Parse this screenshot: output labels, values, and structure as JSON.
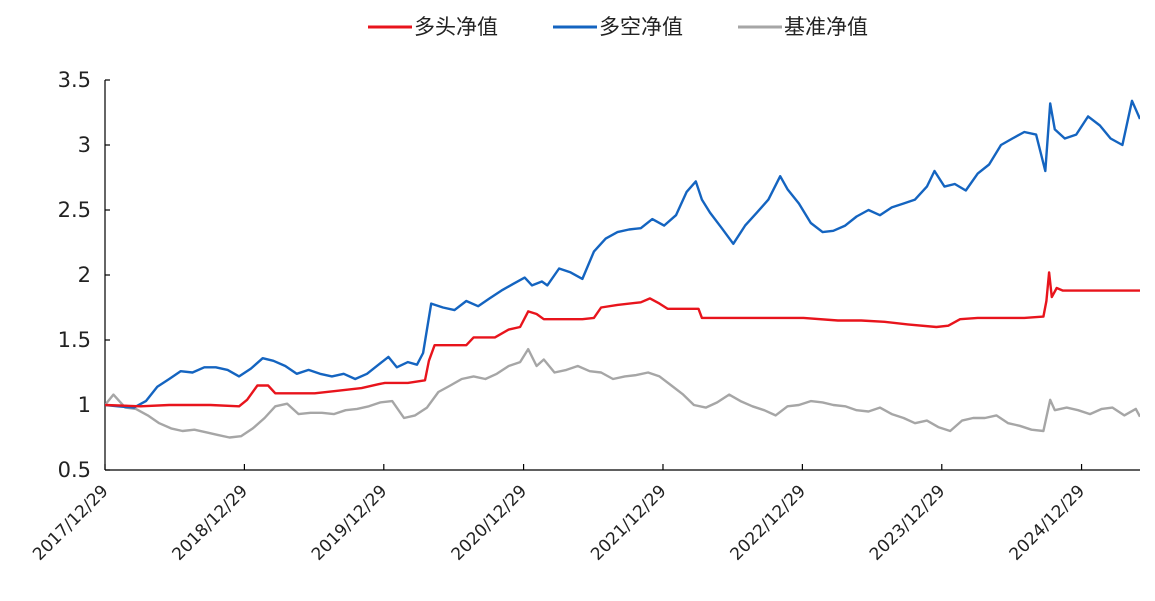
{
  "chart_data": {
    "type": "line",
    "title": "",
    "xlabel": "",
    "ylabel": "",
    "ylim": [
      0.5,
      3.5
    ],
    "yticks": [
      "0.5",
      "1",
      "1.5",
      "2",
      "2.5",
      "3",
      "3.5"
    ],
    "xlim": [
      "2017-12-29",
      "2025-05-31"
    ],
    "xticks": [
      "2017/12/29",
      "2018/12/29",
      "2019/12/29",
      "2020/12/29",
      "2021/12/29",
      "2022/12/29",
      "2023/12/29",
      "2024/12/29"
    ],
    "grid": false,
    "legend_position": "top-center",
    "series": [
      {
        "name": "多头净值",
        "color": "#e8141c",
        "points": [
          [
            "2017-12-29",
            1.0
          ],
          [
            "2018-04-01",
            0.99
          ],
          [
            "2018-06-15",
            1.0
          ],
          [
            "2018-10-01",
            1.0
          ],
          [
            "2018-12-15",
            0.99
          ],
          [
            "2019-01-05",
            1.04
          ],
          [
            "2019-02-01",
            1.15
          ],
          [
            "2019-03-01",
            1.15
          ],
          [
            "2019-03-20",
            1.09
          ],
          [
            "2019-07-01",
            1.09
          ],
          [
            "2019-09-01",
            1.11
          ],
          [
            "2019-11-01",
            1.13
          ],
          [
            "2019-12-15",
            1.16
          ],
          [
            "2020-01-01",
            1.17
          ],
          [
            "2020-03-01",
            1.17
          ],
          [
            "2020-04-15",
            1.19
          ],
          [
            "2020-04-25",
            1.34
          ],
          [
            "2020-05-10",
            1.46
          ],
          [
            "2020-08-01",
            1.46
          ],
          [
            "2020-08-20",
            1.52
          ],
          [
            "2020-10-15",
            1.52
          ],
          [
            "2020-11-20",
            1.58
          ],
          [
            "2020-12-20",
            1.6
          ],
          [
            "2021-01-10",
            1.72
          ],
          [
            "2021-02-01",
            1.7
          ],
          [
            "2021-02-20",
            1.66
          ],
          [
            "2021-06-01",
            1.66
          ],
          [
            "2021-07-01",
            1.67
          ],
          [
            "2021-07-20",
            1.75
          ],
          [
            "2021-09-01",
            1.77
          ],
          [
            "2021-11-01",
            1.79
          ],
          [
            "2021-11-25",
            1.82
          ],
          [
            "2021-12-20",
            1.78
          ],
          [
            "2022-01-10",
            1.74
          ],
          [
            "2022-04-01",
            1.74
          ],
          [
            "2022-04-10",
            1.67
          ],
          [
            "2023-01-01",
            1.67
          ],
          [
            "2023-04-01",
            1.65
          ],
          [
            "2023-06-01",
            1.65
          ],
          [
            "2023-08-01",
            1.64
          ],
          [
            "2023-10-01",
            1.62
          ],
          [
            "2023-12-15",
            1.6
          ],
          [
            "2024-01-15",
            1.61
          ],
          [
            "2024-02-15",
            1.66
          ],
          [
            "2024-04-01",
            1.67
          ],
          [
            "2024-08-01",
            1.67
          ],
          [
            "2024-09-20",
            1.68
          ],
          [
            "2024-09-28",
            1.8
          ],
          [
            "2024-10-05",
            2.02
          ],
          [
            "2024-10-12",
            1.83
          ],
          [
            "2024-10-25",
            1.9
          ],
          [
            "2024-11-10",
            1.88
          ],
          [
            "2025-05-31",
            1.88
          ]
        ]
      },
      {
        "name": "多空净值",
        "color": "#1464c0",
        "points": [
          [
            "2017-12-29",
            1.0
          ],
          [
            "2018-02-01",
            0.99
          ],
          [
            "2018-03-15",
            0.98
          ],
          [
            "2018-04-15",
            1.03
          ],
          [
            "2018-05-15",
            1.14
          ],
          [
            "2018-06-15",
            1.2
          ],
          [
            "2018-07-15",
            1.26
          ],
          [
            "2018-08-15",
            1.25
          ],
          [
            "2018-09-15",
            1.29
          ],
          [
            "2018-10-15",
            1.29
          ],
          [
            "2018-11-15",
            1.27
          ],
          [
            "2018-12-15",
            1.22
          ],
          [
            "2019-01-15",
            1.28
          ],
          [
            "2019-02-15",
            1.36
          ],
          [
            "2019-03-15",
            1.34
          ],
          [
            "2019-04-15",
            1.3
          ],
          [
            "2019-05-15",
            1.24
          ],
          [
            "2019-06-15",
            1.27
          ],
          [
            "2019-07-15",
            1.24
          ],
          [
            "2019-08-15",
            1.22
          ],
          [
            "2019-09-15",
            1.24
          ],
          [
            "2019-10-15",
            1.2
          ],
          [
            "2019-11-15",
            1.24
          ],
          [
            "2019-12-15",
            1.31
          ],
          [
            "2020-01-10",
            1.37
          ],
          [
            "2020-02-01",
            1.29
          ],
          [
            "2020-03-01",
            1.33
          ],
          [
            "2020-03-25",
            1.31
          ],
          [
            "2020-04-10",
            1.4
          ],
          [
            "2020-05-01",
            1.78
          ],
          [
            "2020-06-01",
            1.75
          ],
          [
            "2020-07-01",
            1.73
          ],
          [
            "2020-08-01",
            1.8
          ],
          [
            "2020-09-01",
            1.76
          ],
          [
            "2020-10-01",
            1.82
          ],
          [
            "2020-11-01",
            1.88
          ],
          [
            "2020-12-01",
            1.93
          ],
          [
            "2021-01-01",
            1.98
          ],
          [
            "2021-01-20",
            1.92
          ],
          [
            "2021-02-15",
            1.95
          ],
          [
            "2021-03-01",
            1.92
          ],
          [
            "2021-04-01",
            2.05
          ],
          [
            "2021-05-01",
            2.02
          ],
          [
            "2021-06-01",
            1.97
          ],
          [
            "2021-07-01",
            2.18
          ],
          [
            "2021-08-01",
            2.28
          ],
          [
            "2021-09-01",
            2.33
          ],
          [
            "2021-10-01",
            2.35
          ],
          [
            "2021-11-01",
            2.36
          ],
          [
            "2021-12-01",
            2.43
          ],
          [
            "2022-01-01",
            2.38
          ],
          [
            "2022-02-01",
            2.46
          ],
          [
            "2022-03-01",
            2.64
          ],
          [
            "2022-03-25",
            2.72
          ],
          [
            "2022-04-10",
            2.58
          ],
          [
            "2022-05-01",
            2.48
          ],
          [
            "2022-06-01",
            2.36
          ],
          [
            "2022-07-01",
            2.24
          ],
          [
            "2022-08-01",
            2.38
          ],
          [
            "2022-09-01",
            2.48
          ],
          [
            "2022-10-01",
            2.58
          ],
          [
            "2022-11-01",
            2.76
          ],
          [
            "2022-11-20",
            2.66
          ],
          [
            "2022-12-20",
            2.55
          ],
          [
            "2023-01-20",
            2.4
          ],
          [
            "2023-02-20",
            2.33
          ],
          [
            "2023-03-20",
            2.34
          ],
          [
            "2023-04-20",
            2.38
          ],
          [
            "2023-05-20",
            2.45
          ],
          [
            "2023-06-20",
            2.5
          ],
          [
            "2023-07-20",
            2.46
          ],
          [
            "2023-08-20",
            2.52
          ],
          [
            "2023-09-20",
            2.55
          ],
          [
            "2023-10-20",
            2.58
          ],
          [
            "2023-11-20",
            2.68
          ],
          [
            "2023-12-10",
            2.8
          ],
          [
            "2024-01-05",
            2.68
          ],
          [
            "2024-02-01",
            2.7
          ],
          [
            "2024-03-01",
            2.65
          ],
          [
            "2024-04-01",
            2.78
          ],
          [
            "2024-05-01",
            2.85
          ],
          [
            "2024-06-01",
            3.0
          ],
          [
            "2024-07-01",
            3.05
          ],
          [
            "2024-08-01",
            3.1
          ],
          [
            "2024-09-01",
            3.08
          ],
          [
            "2024-09-25",
            2.8
          ],
          [
            "2024-10-08",
            3.32
          ],
          [
            "2024-10-20",
            3.12
          ],
          [
            "2024-11-15",
            3.05
          ],
          [
            "2024-12-15",
            3.08
          ],
          [
            "2025-01-15",
            3.22
          ],
          [
            "2025-02-15",
            3.15
          ],
          [
            "2025-03-15",
            3.05
          ],
          [
            "2025-04-15",
            3.0
          ],
          [
            "2025-05-10",
            3.34
          ],
          [
            "2025-05-31",
            3.2
          ]
        ]
      },
      {
        "name": "基准净值",
        "color": "#a6a6a6",
        "points": [
          [
            "2017-12-29",
            1.0
          ],
          [
            "2018-01-20",
            1.08
          ],
          [
            "2018-02-20",
            0.98
          ],
          [
            "2018-03-20",
            0.97
          ],
          [
            "2018-04-20",
            0.92
          ],
          [
            "2018-05-20",
            0.86
          ],
          [
            "2018-06-20",
            0.82
          ],
          [
            "2018-07-20",
            0.8
          ],
          [
            "2018-08-20",
            0.81
          ],
          [
            "2018-09-20",
            0.79
          ],
          [
            "2018-10-20",
            0.77
          ],
          [
            "2018-11-20",
            0.75
          ],
          [
            "2018-12-20",
            0.76
          ],
          [
            "2019-01-20",
            0.82
          ],
          [
            "2019-02-20",
            0.9
          ],
          [
            "2019-03-20",
            0.99
          ],
          [
            "2019-04-20",
            1.01
          ],
          [
            "2019-05-20",
            0.93
          ],
          [
            "2019-06-20",
            0.94
          ],
          [
            "2019-07-20",
            0.94
          ],
          [
            "2019-08-20",
            0.93
          ],
          [
            "2019-09-20",
            0.96
          ],
          [
            "2019-10-20",
            0.97
          ],
          [
            "2019-11-20",
            0.99
          ],
          [
            "2019-12-20",
            1.02
          ],
          [
            "2020-01-20",
            1.03
          ],
          [
            "2020-02-20",
            0.9
          ],
          [
            "2020-03-20",
            0.92
          ],
          [
            "2020-04-20",
            0.98
          ],
          [
            "2020-05-20",
            1.1
          ],
          [
            "2020-06-20",
            1.15
          ],
          [
            "2020-07-20",
            1.2
          ],
          [
            "2020-08-20",
            1.22
          ],
          [
            "2020-09-20",
            1.2
          ],
          [
            "2020-10-20",
            1.24
          ],
          [
            "2020-11-20",
            1.3
          ],
          [
            "2020-12-20",
            1.33
          ],
          [
            "2021-01-10",
            1.43
          ],
          [
            "2021-02-01",
            1.3
          ],
          [
            "2021-02-20",
            1.35
          ],
          [
            "2021-03-20",
            1.25
          ],
          [
            "2021-04-20",
            1.27
          ],
          [
            "2021-05-20",
            1.3
          ],
          [
            "2021-06-20",
            1.26
          ],
          [
            "2021-07-20",
            1.25
          ],
          [
            "2021-08-20",
            1.2
          ],
          [
            "2021-09-20",
            1.22
          ],
          [
            "2021-10-20",
            1.23
          ],
          [
            "2021-11-20",
            1.25
          ],
          [
            "2021-12-20",
            1.22
          ],
          [
            "2022-01-20",
            1.15
          ],
          [
            "2022-02-20",
            1.08
          ],
          [
            "2022-03-20",
            1.0
          ],
          [
            "2022-04-20",
            0.98
          ],
          [
            "2022-05-20",
            1.02
          ],
          [
            "2022-06-20",
            1.08
          ],
          [
            "2022-07-20",
            1.03
          ],
          [
            "2022-08-20",
            0.99
          ],
          [
            "2022-09-20",
            0.96
          ],
          [
            "2022-10-20",
            0.92
          ],
          [
            "2022-11-20",
            0.99
          ],
          [
            "2022-12-20",
            1.0
          ],
          [
            "2023-01-20",
            1.03
          ],
          [
            "2023-02-20",
            1.02
          ],
          [
            "2023-03-20",
            1.0
          ],
          [
            "2023-04-20",
            0.99
          ],
          [
            "2023-05-20",
            0.96
          ],
          [
            "2023-06-20",
            0.95
          ],
          [
            "2023-07-20",
            0.98
          ],
          [
            "2023-08-20",
            0.93
          ],
          [
            "2023-09-20",
            0.9
          ],
          [
            "2023-10-20",
            0.86
          ],
          [
            "2023-11-20",
            0.88
          ],
          [
            "2023-12-20",
            0.83
          ],
          [
            "2024-01-20",
            0.8
          ],
          [
            "2024-02-20",
            0.88
          ],
          [
            "2024-03-20",
            0.9
          ],
          [
            "2024-04-20",
            0.9
          ],
          [
            "2024-05-20",
            0.92
          ],
          [
            "2024-06-20",
            0.86
          ],
          [
            "2024-07-20",
            0.84
          ],
          [
            "2024-08-20",
            0.81
          ],
          [
            "2024-09-20",
            0.8
          ],
          [
            "2024-10-08",
            1.04
          ],
          [
            "2024-10-20",
            0.96
          ],
          [
            "2024-11-20",
            0.98
          ],
          [
            "2024-12-20",
            0.96
          ],
          [
            "2025-01-20",
            0.93
          ],
          [
            "2025-02-20",
            0.97
          ],
          [
            "2025-03-20",
            0.98
          ],
          [
            "2025-04-20",
            0.92
          ],
          [
            "2025-05-20",
            0.97
          ],
          [
            "2025-05-31",
            0.91
          ]
        ]
      }
    ]
  }
}
